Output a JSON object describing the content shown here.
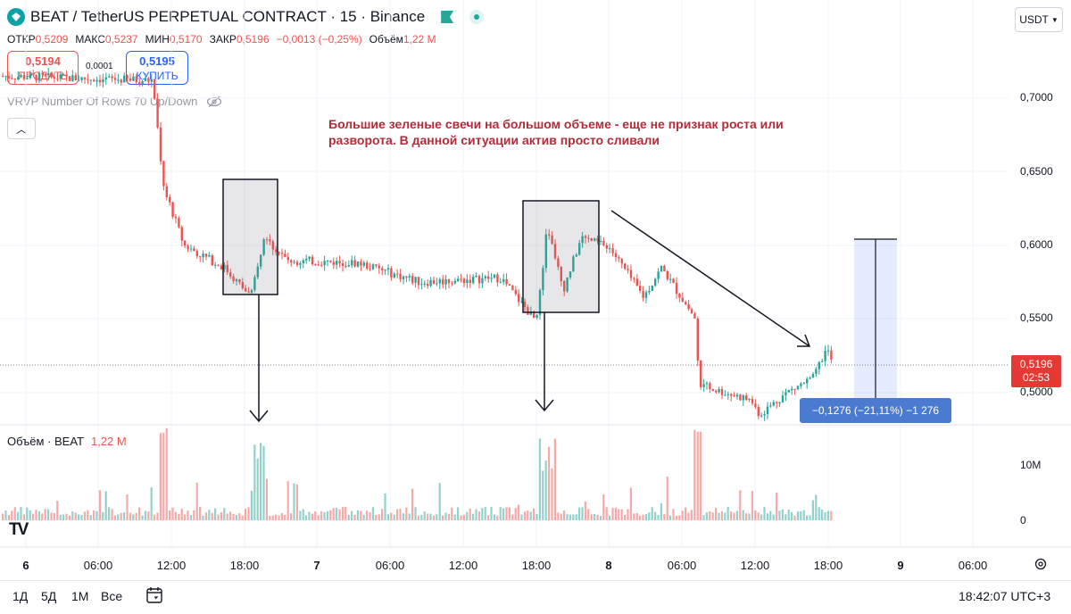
{
  "header": {
    "title": "BEAT / TetherUS PERPETUAL CONTRACT · 15 · Binance",
    "currency": "USDT",
    "ohlc": {
      "open_label": "ОТКР",
      "open": "0,5209",
      "high_label": "МАКС",
      "high": "0,5237",
      "low_label": "МИН",
      "low": "0,5170",
      "close_label": "ЗАКР",
      "close": "0,5196",
      "change": "−0,0013 (−0,25%)",
      "volume_label": "Объём",
      "volume": "1,22 M"
    }
  },
  "trade": {
    "sell_price": "0,5194",
    "sell_label": "ПРОДАТЬ",
    "spread": "0,0001",
    "buy_price": "0,5195",
    "buy_label": "КУПИТЬ"
  },
  "indicator": {
    "vrvp_label": "VRVP Number Of Rows 70 Up/Down",
    "collapse_icon": "chevron-up-icon"
  },
  "annotation": "Большие зеленые свечи на большом объеме - еще не признак роста или разворота. В данной ситуации актив просто сливали",
  "price_axis": [
    "0,7000",
    "0,6500",
    "0,6000",
    "0,5500",
    "0,5000"
  ],
  "last_price": {
    "price": "0,5196",
    "countdown": "02:53"
  },
  "measure": {
    "label": "−0,1276 (−21,11%) −1 276"
  },
  "volume_pane": {
    "legend_label": "Объём · BEAT",
    "legend_value": "1,22 M",
    "axis": [
      "10M",
      "0"
    ]
  },
  "time_axis": [
    {
      "label": "6",
      "bold": true
    },
    {
      "label": "06:00"
    },
    {
      "label": "12:00"
    },
    {
      "label": "18:00"
    },
    {
      "label": "7",
      "bold": true
    },
    {
      "label": "06:00"
    },
    {
      "label": "12:00"
    },
    {
      "label": "18:00"
    },
    {
      "label": "8",
      "bold": true
    },
    {
      "label": "06:00"
    },
    {
      "label": "12:00"
    },
    {
      "label": "18:00"
    },
    {
      "label": "9",
      "bold": true
    },
    {
      "label": "06:00"
    }
  ],
  "bottom": {
    "periods": [
      "1Д",
      "5Д",
      "1М",
      "Все"
    ],
    "clock": "18:42:07 UTC+3",
    "logo": "TV"
  },
  "colors": {
    "up": "#26a69a",
    "down": "#ef5350",
    "accent": "#2962ff",
    "annotation": "#b22c3a"
  },
  "chart_data": {
    "type": "candlestick",
    "interval": "15",
    "y_axis_prices": [
      0.7,
      0.65,
      0.6,
      0.55,
      0.5
    ],
    "path_approx": [
      {
        "t": "6 00:00",
        "price": 0.715
      },
      {
        "t": "6 11:00",
        "price": 0.71
      },
      {
        "t": "6 12:00",
        "price": 0.64
      },
      {
        "t": "6 14:00",
        "price": 0.6
      },
      {
        "t": "6 18:00",
        "price": 0.57
      },
      {
        "t": "6 20:00",
        "price": 0.605
      },
      {
        "t": "7 00:00",
        "price": 0.59
      },
      {
        "t": "7 12:00",
        "price": 0.575
      },
      {
        "t": "7 18:00",
        "price": 0.55
      },
      {
        "t": "7 19:00",
        "price": 0.615
      },
      {
        "t": "7 21:00",
        "price": 0.605
      },
      {
        "t": "8 06:00",
        "price": 0.57
      },
      {
        "t": "8 07:00",
        "price": 0.51
      },
      {
        "t": "8 12:00",
        "price": 0.495
      },
      {
        "t": "8 18:00",
        "price": 0.5196
      }
    ],
    "measure_change": "−0,1276 (−21,11%)"
  }
}
